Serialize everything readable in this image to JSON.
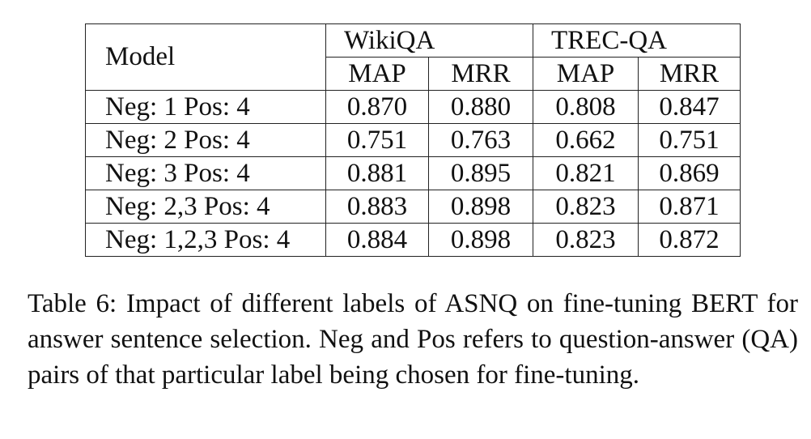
{
  "table": {
    "model_header": "Model",
    "groups": [
      "WikiQA",
      "TREC-QA"
    ],
    "metrics": [
      "MAP",
      "MRR",
      "MAP",
      "MRR"
    ],
    "rows": [
      {
        "label": "Neg: 1 Pos: 4",
        "values": [
          "0.870",
          "0.880",
          "0.808",
          "0.847"
        ]
      },
      {
        "label": "Neg: 2 Pos: 4",
        "values": [
          "0.751",
          "0.763",
          "0.662",
          "0.751"
        ]
      },
      {
        "label": "Neg: 3 Pos: 4",
        "values": [
          "0.881",
          "0.895",
          "0.821",
          "0.869"
        ]
      },
      {
        "label": "Neg: 2,3 Pos: 4",
        "values": [
          "0.883",
          "0.898",
          "0.823",
          "0.871"
        ]
      },
      {
        "label": "Neg: 1,2,3 Pos: 4",
        "values": [
          "0.884",
          "0.898",
          "0.823",
          "0.872"
        ]
      }
    ]
  },
  "caption": "Table 6: Impact of different labels of ASNQ on fine-tuning BERT for answer sentence selection. Neg and Pos refers to question-answer (QA) pairs of that particular label being chosen for fine-tuning."
}
